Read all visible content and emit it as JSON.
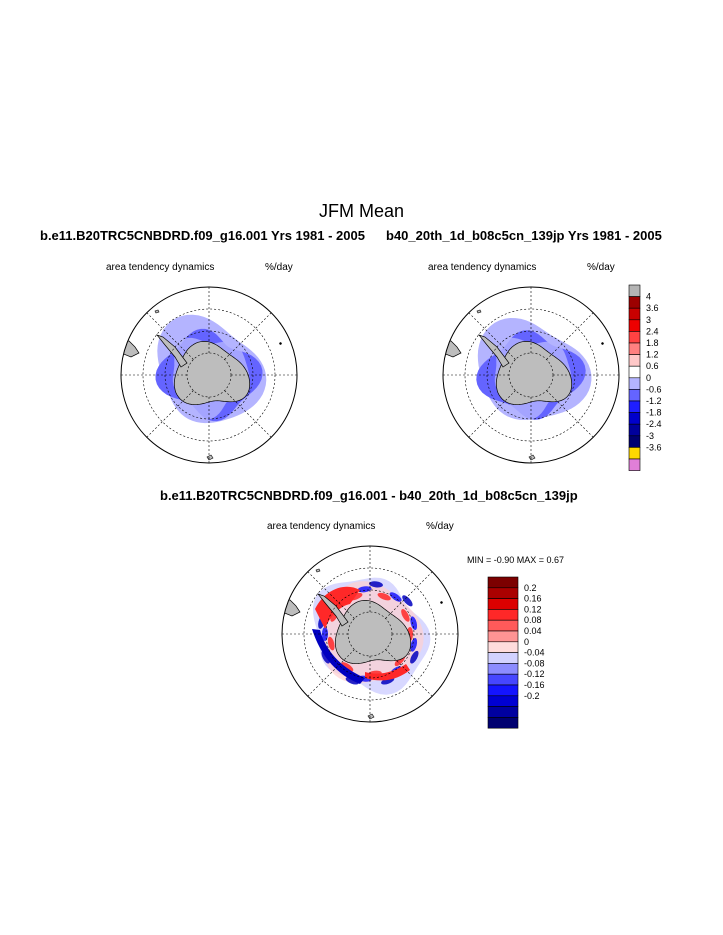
{
  "figure": {
    "title": "JFM Mean",
    "diff_title": "b.e11.B20TRC5CNBDRD.f09_g16.001 - b40_20th_1d_b08c5cn_139jp"
  },
  "panels": [
    {
      "case_title": "b.e11.B20TRC5CNBDRD.f09_g16.001  Yrs 1981 - 2005",
      "variable": "area tendency dynamics",
      "units": "%/day"
    },
    {
      "case_title": "b40_20th_1d_b08c5cn_139jp  Yrs 1981 - 2005",
      "variable": "area tendency dynamics",
      "units": "%/day"
    },
    {
      "variable": "area tendency dynamics",
      "units": "%/day",
      "stats": "MIN =   -0.90 MAX =    0.67"
    }
  ],
  "colorbar_main": {
    "labels": [
      "4",
      "3.6",
      "3",
      "2.4",
      "1.8",
      "1.2",
      "0.6",
      "0",
      "-0.6",
      "-1.2",
      "-1.8",
      "-2.4",
      "-3",
      "-3.6"
    ],
    "colors": [
      "#b4b4b4",
      "#9c0000",
      "#c80000",
      "#ee0000",
      "#ff4242",
      "#ff8080",
      "#ffc8c8",
      "#ffffff",
      "#b4b4ff",
      "#6464ff",
      "#1e1eff",
      "#0000cc",
      "#00009c",
      "#000070",
      "#ffd700",
      "#e07fd8"
    ]
  },
  "colorbar_diff": {
    "labels": [
      "0.2",
      "0.16",
      "0.12",
      "0.08",
      "0.04",
      "0",
      "-0.04",
      "-0.08",
      "-0.12",
      "-0.16",
      "-0.2"
    ],
    "colors": [
      "#7c0000",
      "#aa0000",
      "#dc0000",
      "#ff2828",
      "#ff5a5a",
      "#ff9494",
      "#ffdcdc",
      "#d2d2ff",
      "#8c8cff",
      "#4646ff",
      "#1414ff",
      "#0000d2",
      "#0000a0",
      "#000070"
    ]
  },
  "map_colors": {
    "land": "#bdbdbd",
    "ice_light": "#b4b4ff",
    "ice_mid": "#6464ff",
    "diff_red": "#ff2828",
    "diff_blue": "#1414ff",
    "diff_darkblue": "#0000c0"
  }
}
